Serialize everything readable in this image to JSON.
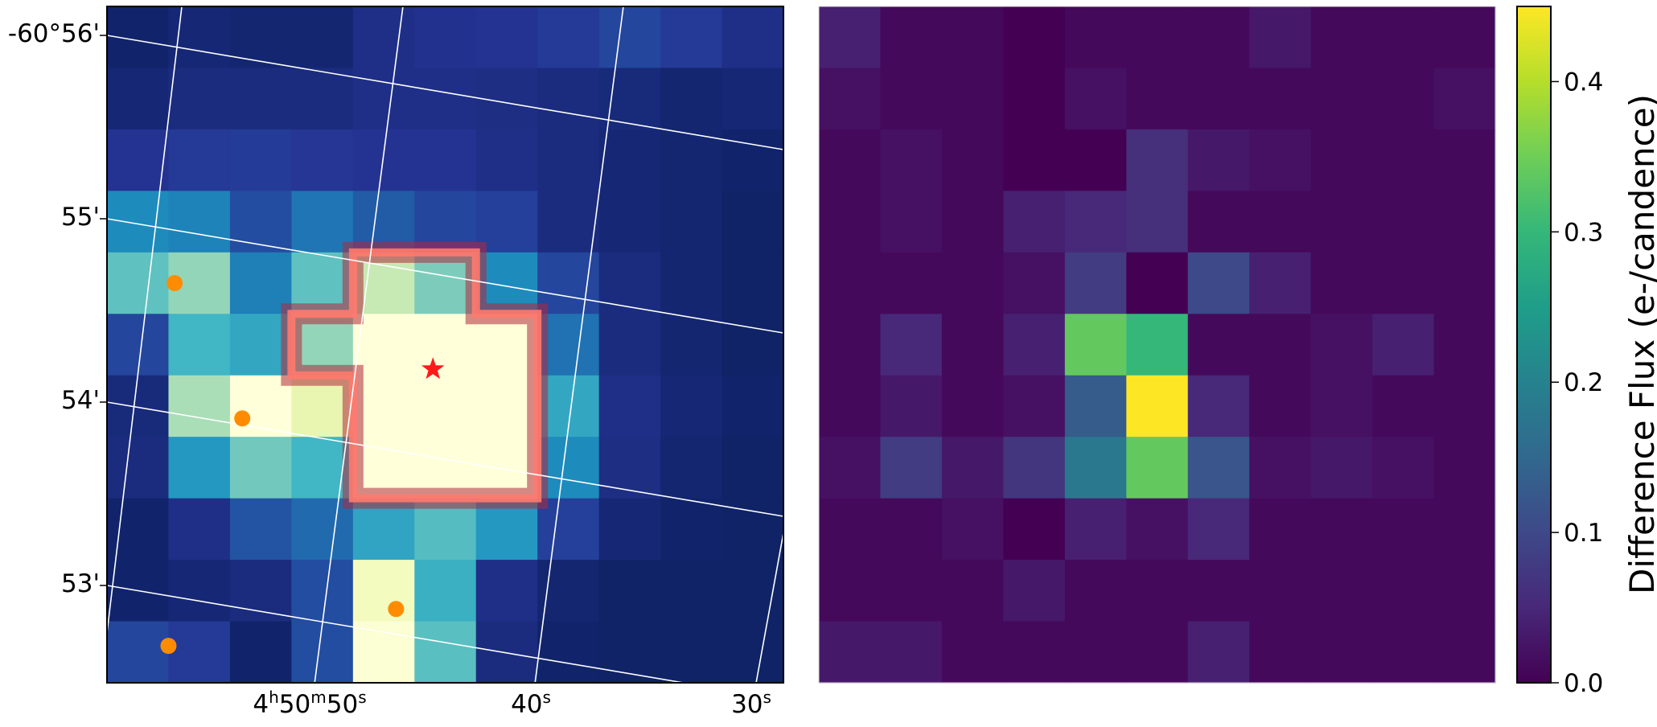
{
  "chart_data": [
    {
      "type": "heatmap",
      "panel": "left",
      "colormap": "YlGnBu",
      "color_stops": [
        "#081d58",
        "#253494",
        "#225ea8",
        "#1d91c0",
        "#41b6c4",
        "#7fcdbb",
        "#c7e9b4",
        "#edf8b1",
        "#ffffd9"
      ],
      "rows": 11,
      "cols": 11,
      "values": [
        [
          0.04,
          0.06,
          0.05,
          0.05,
          0.1,
          0.11,
          0.12,
          0.14,
          0.18,
          0.14,
          0.1
        ],
        [
          0.06,
          0.08,
          0.08,
          0.08,
          0.1,
          0.1,
          0.09,
          0.08,
          0.07,
          0.05,
          0.06
        ],
        [
          0.12,
          0.14,
          0.15,
          0.13,
          0.12,
          0.12,
          0.1,
          0.08,
          0.06,
          0.05,
          0.04
        ],
        [
          0.36,
          0.34,
          0.2,
          0.31,
          0.24,
          0.18,
          0.16,
          0.08,
          0.06,
          0.05,
          0.03
        ],
        [
          0.56,
          0.66,
          0.33,
          0.56,
          0.75,
          0.62,
          0.36,
          0.18,
          0.08,
          0.05,
          0.03
        ],
        [
          0.18,
          0.5,
          0.45,
          0.66,
          1.0,
          1.0,
          1.0,
          0.3,
          0.08,
          0.05,
          0.03
        ],
        [
          0.07,
          0.7,
          1.0,
          0.86,
          1.0,
          1.0,
          1.0,
          0.45,
          0.1,
          0.06,
          0.04
        ],
        [
          0.08,
          0.4,
          0.6,
          0.5,
          1.0,
          1.0,
          1.0,
          0.36,
          0.09,
          0.05,
          0.03
        ],
        [
          0.04,
          0.1,
          0.22,
          0.28,
          0.44,
          0.54,
          0.4,
          0.16,
          0.06,
          0.04,
          0.03
        ],
        [
          0.04,
          0.06,
          0.08,
          0.2,
          0.92,
          0.48,
          0.1,
          0.05,
          0.03,
          0.03,
          0.03
        ],
        [
          0.18,
          0.14,
          0.04,
          0.2,
          0.98,
          0.55,
          0.08,
          0.04,
          0.03,
          0.03,
          0.03
        ]
      ],
      "aperture_cells": [
        [
          4,
          4
        ],
        [
          4,
          5
        ],
        [
          5,
          3
        ],
        [
          5,
          4
        ],
        [
          5,
          5
        ],
        [
          5,
          6
        ],
        [
          6,
          4
        ],
        [
          6,
          5
        ],
        [
          6,
          6
        ],
        [
          7,
          4
        ],
        [
          7,
          5
        ],
        [
          7,
          6
        ]
      ],
      "target_cell": [
        5.9,
        5.3
      ],
      "nearby_sources": [
        [
          4.5,
          1.1
        ],
        [
          6.7,
          2.2
        ],
        [
          9.8,
          4.7
        ],
        [
          10.4,
          1.0
        ]
      ],
      "y_tick_labels": [
        "-60°56'",
        "55'",
        "54'",
        "53'"
      ],
      "x_tick_labels": [
        {
          "base": "4",
          "sup1": "h",
          "mid": "50",
          "sup2": "m",
          "end": "50",
          "sup3": "s"
        },
        {
          "base": "40",
          "sup1": "s"
        },
        {
          "base": "30",
          "sup1": "s"
        }
      ],
      "grid": true
    },
    {
      "type": "heatmap",
      "panel": "right",
      "colormap": "viridis",
      "color_stops": [
        "#440154",
        "#482878",
        "#3e4989",
        "#31688e",
        "#26828e",
        "#1f9e89",
        "#35b779",
        "#6ece58",
        "#b5de2b",
        "#fde725"
      ],
      "rows": 11,
      "cols": 11,
      "zlim": [
        0.0,
        0.45
      ],
      "values": [
        [
          0.04,
          0.01,
          0.01,
          0.0,
          0.01,
          0.01,
          0.01,
          0.03,
          0.01,
          0.01,
          0.01
        ],
        [
          0.02,
          0.01,
          0.01,
          0.0,
          0.02,
          0.01,
          0.01,
          0.01,
          0.01,
          0.01,
          0.02
        ],
        [
          0.01,
          0.02,
          0.01,
          0.0,
          0.0,
          0.06,
          0.03,
          0.02,
          0.01,
          0.01,
          0.01
        ],
        [
          0.01,
          0.02,
          0.01,
          0.04,
          0.05,
          0.06,
          0.01,
          0.01,
          0.01,
          0.01,
          0.01
        ],
        [
          0.01,
          0.01,
          0.01,
          0.02,
          0.08,
          0.0,
          0.1,
          0.04,
          0.01,
          0.01,
          0.01
        ],
        [
          0.01,
          0.05,
          0.01,
          0.04,
          0.34,
          0.3,
          0.01,
          0.01,
          0.02,
          0.04,
          0.01
        ],
        [
          0.01,
          0.03,
          0.01,
          0.02,
          0.13,
          0.45,
          0.05,
          0.01,
          0.02,
          0.01,
          0.01
        ],
        [
          0.02,
          0.08,
          0.03,
          0.07,
          0.18,
          0.34,
          0.12,
          0.02,
          0.03,
          0.02,
          0.01
        ],
        [
          0.01,
          0.01,
          0.02,
          0.0,
          0.04,
          0.02,
          0.05,
          0.01,
          0.01,
          0.01,
          0.01
        ],
        [
          0.01,
          0.01,
          0.01,
          0.03,
          0.01,
          0.01,
          0.01,
          0.01,
          0.01,
          0.01,
          0.01
        ],
        [
          0.03,
          0.03,
          0.01,
          0.01,
          0.01,
          0.01,
          0.04,
          0.01,
          0.01,
          0.01,
          0.01
        ]
      ],
      "colorbar": {
        "label": "Difference Flux (e-/candence)",
        "range": [
          0.0,
          0.45
        ],
        "ticks": [
          0.0,
          0.1,
          0.2,
          0.3,
          0.4
        ],
        "tick_labels": [
          "0.0",
          "0.1",
          "0.2",
          "0.3",
          "0.4"
        ]
      }
    }
  ]
}
